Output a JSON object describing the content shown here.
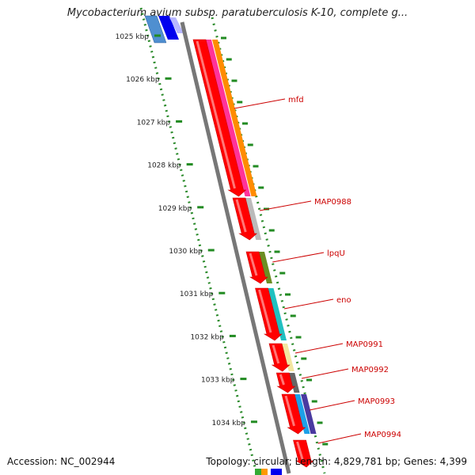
{
  "title": "Mycobacterium avium subsp. paratuberculosis K-10, complete g...",
  "ruler": {
    "ticks": [
      "1025 kbp",
      "1026 kbp",
      "1027 kbp",
      "1028 kbp",
      "1029 kbp",
      "1030 kbp",
      "1031 kbp",
      "1032 kbp",
      "1033 kbp",
      "1034 kbp"
    ]
  },
  "genes": [
    {
      "label": "mfd",
      "color": "#ff0000",
      "strand": "forward"
    },
    {
      "label": "MAP0988",
      "color": "#ff0000",
      "strand": "forward"
    },
    {
      "label": "lpqU",
      "color": "#ff0000",
      "strand": "forward"
    },
    {
      "label": "eno",
      "color": "#ff0000",
      "strand": "forward"
    },
    {
      "label": "MAP0991",
      "color": "#ff0000",
      "strand": "forward"
    },
    {
      "label": "MAP0992",
      "color": "#ff0000",
      "strand": "forward"
    },
    {
      "label": "MAP0993",
      "color": "#ff0000",
      "strand": "forward"
    },
    {
      "label": "MAP0994",
      "color": "#ff0000",
      "strand": "forward"
    }
  ],
  "colors": {
    "gene": "#ff0000",
    "label": "#cc0000",
    "backbone": "#808080",
    "ticks": "#228b22"
  },
  "footer": {
    "accession": "Accession: NC_002944",
    "topology": "Topology: circular; Length: 4,829,781 bp; Genes: 4,399"
  }
}
